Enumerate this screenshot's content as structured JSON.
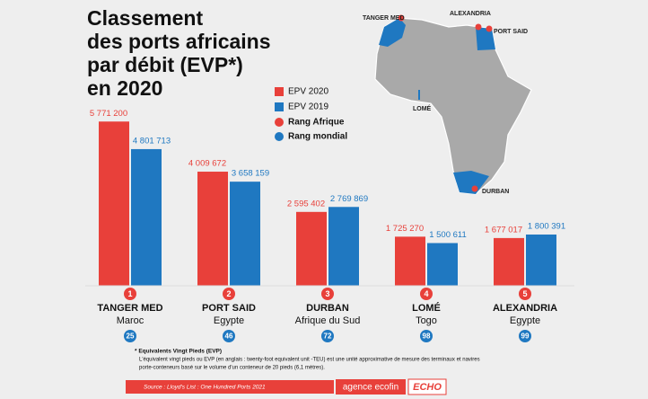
{
  "chart_data": {
    "type": "bar",
    "title": [
      "Classement",
      "des ports africains",
      "par débit (EVP*)",
      "en 2020"
    ],
    "categories": [
      "TANGER MED",
      "PORT SAID",
      "DURBAN",
      "LOMÉ",
      "ALEXANDRIA"
    ],
    "countries": [
      "Maroc",
      "Egypte",
      "Afrique du Sud",
      "Togo",
      "Egypte"
    ],
    "series": [
      {
        "name": "EPV 2020",
        "color": "#e8403a",
        "values": [
          5771200,
          4009672,
          2595402,
          1725270,
          1677017
        ],
        "value_labels": [
          "5 771 200",
          "4 009 672",
          "2 595 402",
          "1 725 270",
          "1 677 017"
        ]
      },
      {
        "name": "EPV 2019",
        "color": "#1f78c1",
        "values": [
          4801713,
          3658159,
          2769869,
          1500611,
          1800391
        ],
        "value_labels": [
          "4 801 713",
          "3 658 159",
          "2 769 869",
          "1 500 611",
          "1 800 391"
        ]
      }
    ],
    "ranks": [
      {
        "name": "Rang Afrique",
        "color": "#e8403a",
        "values": [
          1,
          2,
          3,
          4,
          5
        ]
      },
      {
        "name": "Rang  mondial",
        "color": "#1f78c1",
        "values": [
          25,
          46,
          72,
          98,
          99
        ]
      }
    ],
    "ylim": [
      0,
      6000000
    ],
    "map_labels": [
      "TANGER MED",
      "ALEXANDRIA",
      "PORT SAID",
      "LOMÉ",
      "DURBAN"
    ],
    "footnote": {
      "title": "* Equivalents Vingt Pieds (EVP)",
      "lines": [
        "L'équivalent vingt pieds ou EVP (en anglais : twenty-foot equivalent unit -TEU) est une unité approximative de mesure des terminaux et navires",
        "porte-conteneurs basé sur le volume d'un conteneur de 20 pieds (6,1 mètres)."
      ]
    },
    "source": "Source : Lloyd's List : One Hundred Ports 2021",
    "logos": [
      "agence ecofin",
      "ECHO"
    ]
  }
}
